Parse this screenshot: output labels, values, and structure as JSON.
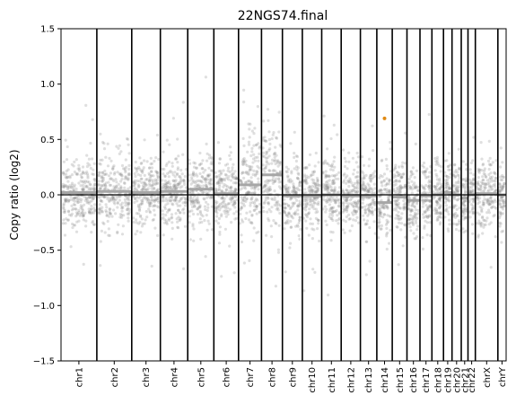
{
  "chart_data": {
    "type": "scatter",
    "title": "22NGS74.final",
    "ylabel": "Copy ratio (log2)",
    "xlabel": "",
    "ylim": [
      -1.5,
      1.5
    ],
    "yticks": [
      1.5,
      1.0,
      0.5,
      0.0,
      -0.5,
      -1.0,
      -1.5
    ],
    "ytick_labels": [
      "1.5",
      "1.0",
      "0.5",
      "0.0",
      "−0.5",
      "−1.0",
      "−1.5"
    ],
    "grid": false,
    "legend": "none",
    "point_color": "#808080",
    "segment_color": "#a6a6a6",
    "outlier_color": "#e08a14",
    "reference_line": 0.0,
    "chromosomes": [
      {
        "name": "chr1",
        "relsize": 248,
        "segment": 0.02
      },
      {
        "name": "chr2",
        "relsize": 242,
        "segment": 0.03
      },
      {
        "name": "chr3",
        "relsize": 198,
        "segment": 0.02
      },
      {
        "name": "chr4",
        "relsize": 190,
        "segment": 0.03
      },
      {
        "name": "chr5",
        "relsize": 181,
        "segment": 0.05
      },
      {
        "name": "chr6",
        "relsize": 171,
        "segment": 0.01
      },
      {
        "name": "chr7",
        "relsize": 159,
        "segment": 0.09
      },
      {
        "name": "chr8",
        "relsize": 145,
        "segment": 0.18
      },
      {
        "name": "chr9",
        "relsize": 138,
        "segment": -0.01
      },
      {
        "name": "chr10",
        "relsize": 134,
        "segment": -0.01
      },
      {
        "name": "chr11",
        "relsize": 135,
        "segment": 0.0
      },
      {
        "name": "chr12",
        "relsize": 133,
        "segment": -0.01
      },
      {
        "name": "chr13",
        "relsize": 114,
        "segment": -0.01
      },
      {
        "name": "chr14",
        "relsize": 107,
        "segment": -0.07
      },
      {
        "name": "chr15",
        "relsize": 102,
        "segment": -0.02
      },
      {
        "name": "chr16",
        "relsize": 90,
        "segment": -0.05
      },
      {
        "name": "chr17",
        "relsize": 83,
        "segment": -0.01
      },
      {
        "name": "chr18",
        "relsize": 80,
        "segment": 0.0
      },
      {
        "name": "chr19",
        "relsize": 59,
        "segment": 0.02
      },
      {
        "name": "chr20",
        "relsize": 64,
        "segment": 0.0
      },
      {
        "name": "chr21",
        "relsize": 47,
        "segment": -0.03
      },
      {
        "name": "chr22",
        "relsize": 51,
        "segment": 0.0
      },
      {
        "name": "chrX",
        "relsize": 156,
        "segment": 0.01
      },
      {
        "name": "chrY",
        "relsize": 57,
        "segment": 0.0
      }
    ],
    "highlighted_point": {
      "chromosome": "chr14",
      "y": 0.69
    }
  }
}
